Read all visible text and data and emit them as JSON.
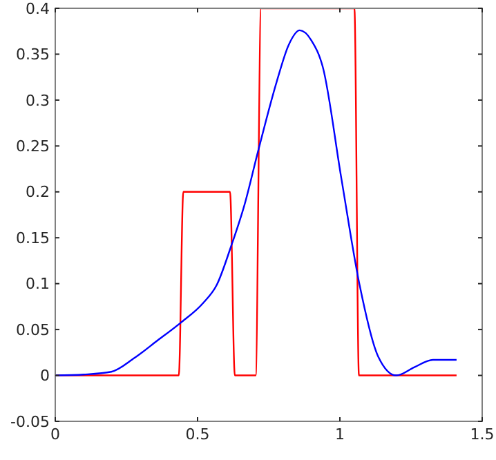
{
  "chart_data": {
    "type": "line",
    "xlim": [
      0,
      1.5
    ],
    "ylim": [
      -0.05,
      0.4
    ],
    "xticks": [
      0,
      0.5,
      1,
      1.5
    ],
    "yticks": [
      -0.05,
      0,
      0.05,
      0.1,
      0.15,
      0.2,
      0.25,
      0.3,
      0.35,
      0.4
    ],
    "grid": false,
    "marker": "none",
    "line_style": "solid",
    "series": [
      {
        "color": "#ff0000",
        "x": [
          0,
          0.434,
          0.45,
          0.614,
          0.631,
          0.704,
          0.723,
          1.051,
          1.067,
          1.41
        ],
        "values": [
          0,
          0,
          0.2,
          0.2,
          0,
          0,
          0.4,
          0.4,
          0,
          0
        ]
      },
      {
        "color": "#0000ff",
        "x": [
          0,
          0.1,
          0.197,
          0.278,
          0.359,
          0.439,
          0.52,
          0.568,
          0.617,
          0.665,
          0.714,
          0.778,
          0.82,
          0.859,
          0.9,
          0.94,
          1.005,
          1.069,
          1.134,
          1.198,
          1.262,
          1.327,
          1.41
        ],
        "values": [
          0,
          0.001,
          0.004,
          0.019,
          0.038,
          0.057,
          0.079,
          0.099,
          0.14,
          0.186,
          0.246,
          0.32,
          0.36,
          0.376,
          0.365,
          0.336,
          0.215,
          0.099,
          0.021,
          0,
          0.009,
          0.017,
          0.017
        ]
      }
    ]
  }
}
